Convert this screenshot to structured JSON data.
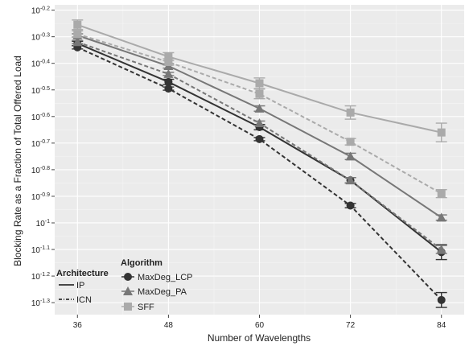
{
  "chart_data": {
    "type": "line",
    "title": "",
    "xlabel": "Number of Wavelengths",
    "ylabel": "Blocking Rate as a Fraction of Total Offered Load",
    "x": [
      36,
      48,
      60,
      72,
      84
    ],
    "x_tick_labels": [
      "36",
      "48",
      "60",
      "72",
      "84"
    ],
    "y_scale": "log10",
    "y_tick_exponents": [
      -2,
      -3,
      -4,
      -5,
      -6,
      -7,
      -8,
      -9,
      -10,
      -11,
      -12,
      -13
    ],
    "y_tick_labels": [
      "10-0.2",
      "10-0.3",
      "10-0.4",
      "10-0.5",
      "10-0.6",
      "10-0.7",
      "10-0.8",
      "10-0.9",
      "10-1",
      "10-1.1",
      "10-1.2",
      "10-1.3"
    ],
    "y_tick_display": [
      {
        "base": "10",
        "exp": "-0.2"
      },
      {
        "base": "10",
        "exp": "-0.3"
      },
      {
        "base": "10",
        "exp": "-0.4"
      },
      {
        "base": "10",
        "exp": "-0.5"
      },
      {
        "base": "10",
        "exp": "-0.6"
      },
      {
        "base": "10",
        "exp": "-0.7"
      },
      {
        "base": "10",
        "exp": "-0.8"
      },
      {
        "base": "10",
        "exp": "-0.9"
      },
      {
        "base": "10",
        "exp": "-1"
      },
      {
        "base": "10",
        "exp": "-1.1"
      },
      {
        "base": "10",
        "exp": "-1.2"
      },
      {
        "base": "10",
        "exp": "-1.3"
      }
    ],
    "ylim_exponent": [
      -13.45,
      -1.8
    ],
    "xlim": [
      33,
      87
    ],
    "grid": true,
    "background": "#ebebeb",
    "legend_position": "bottom-left",
    "legends": {
      "architecture": {
        "title": "Architecture",
        "items": [
          "IP",
          "ICN"
        ]
      },
      "algorithm": {
        "title": "Algorithm",
        "items": [
          "MaxDeg_LCP",
          "MaxDeg_PA",
          "SFF"
        ]
      }
    },
    "series": [
      {
        "name": "MaxDeg_LCP",
        "architecture": "IP",
        "marker": "circle",
        "color": "#333333",
        "dash": "solid",
        "log10_values": [
          -3.25,
          -4.7,
          -6.4,
          -8.4,
          -11.1
        ],
        "log10_err": [
          0.08,
          0.1,
          0.1,
          0.1,
          0.28
        ]
      },
      {
        "name": "MaxDeg_LCP",
        "architecture": "ICN",
        "marker": "circle",
        "color": "#333333",
        "dash": "dashed",
        "log10_values": [
          -3.4,
          -4.95,
          -6.85,
          -9.35,
          -12.9
        ],
        "log10_err": [
          0.06,
          0.06,
          0.06,
          0.08,
          0.28
        ]
      },
      {
        "name": "MaxDeg_PA",
        "architecture": "IP",
        "marker": "triangle",
        "color": "#777777",
        "dash": "solid",
        "log10_values": [
          -2.95,
          -4.1,
          -5.7,
          -7.5,
          -9.8
        ],
        "log10_err": [
          0.06,
          0.08,
          0.1,
          0.12,
          0.1
        ]
      },
      {
        "name": "MaxDeg_PA",
        "architecture": "ICN",
        "marker": "triangle",
        "color": "#777777",
        "dash": "dashed",
        "log10_values": [
          -3.2,
          -4.4,
          -6.25,
          -8.4,
          -11.0
        ],
        "log10_err": [
          0.06,
          0.06,
          0.08,
          0.1,
          0.15
        ]
      },
      {
        "name": "SFF",
        "architecture": "IP",
        "marker": "square",
        "color": "#aaaaaa",
        "dash": "solid",
        "log10_values": [
          -2.55,
          -3.75,
          -4.75,
          -5.85,
          -6.6
        ],
        "log10_err": [
          0.18,
          0.15,
          0.2,
          0.25,
          0.35
        ]
      },
      {
        "name": "SFF",
        "architecture": "ICN",
        "marker": "square",
        "color": "#aaaaaa",
        "dash": "dashed",
        "log10_values": [
          -2.9,
          -3.95,
          -5.15,
          -6.95,
          -8.9
        ],
        "log10_err": [
          0.12,
          0.12,
          0.18,
          0.12,
          0.15
        ]
      }
    ]
  }
}
